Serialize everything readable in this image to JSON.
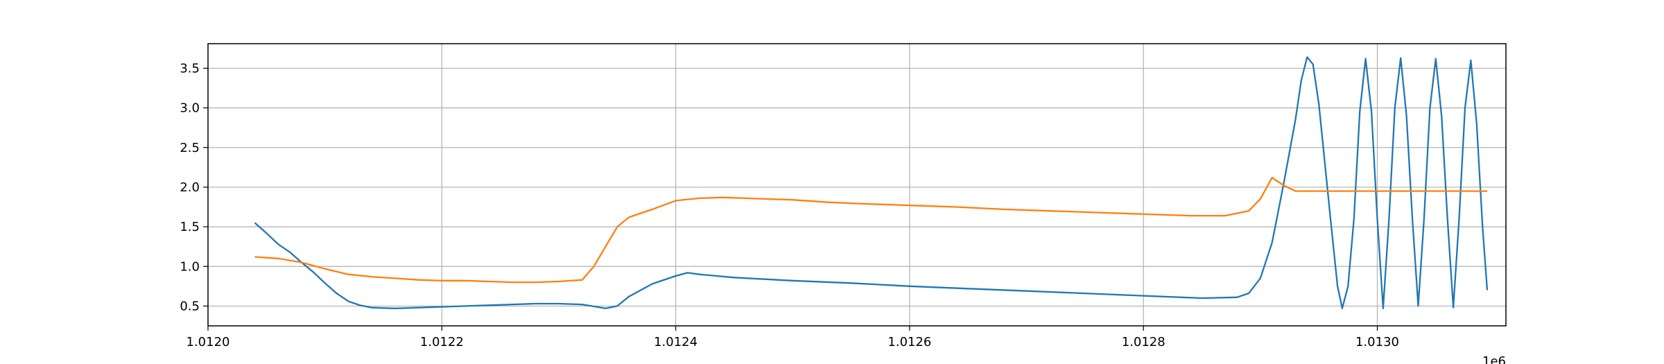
{
  "chart_data": {
    "type": "line",
    "title": "",
    "xlabel": "",
    "ylabel": "",
    "x_offset_label": "1e6",
    "xlim": [
      1.012,
      1.01311
    ],
    "ylim": [
      0.25,
      3.81
    ],
    "x_ticks": [
      1.012,
      1.0122,
      1.0124,
      1.0126,
      1.0128,
      1.013
    ],
    "x_tick_labels": [
      "1.0120",
      "1.0122",
      "1.0124",
      "1.0126",
      "1.0128",
      "1.0130"
    ],
    "y_ticks": [
      0.5,
      1.0,
      1.5,
      2.0,
      2.5,
      3.0,
      3.5
    ],
    "y_tick_labels": [
      "0.5",
      "1.0",
      "1.5",
      "2.0",
      "2.5",
      "3.0",
      "3.5"
    ],
    "grid": true,
    "legend": "none",
    "series": [
      {
        "color": "#1f77b4",
        "points": [
          [
            1.01204,
            1.55
          ],
          [
            1.01205,
            1.42
          ],
          [
            1.01206,
            1.28
          ],
          [
            1.01207,
            1.18
          ],
          [
            1.01208,
            1.05
          ],
          [
            1.01209,
            0.93
          ],
          [
            1.0121,
            0.79
          ],
          [
            1.01211,
            0.66
          ],
          [
            1.01212,
            0.56
          ],
          [
            1.01213,
            0.51
          ],
          [
            1.01214,
            0.48
          ],
          [
            1.01216,
            0.47
          ],
          [
            1.01218,
            0.48
          ],
          [
            1.0122,
            0.49
          ],
          [
            1.01222,
            0.5
          ],
          [
            1.01224,
            0.51
          ],
          [
            1.01226,
            0.52
          ],
          [
            1.01228,
            0.53
          ],
          [
            1.0123,
            0.53
          ],
          [
            1.01232,
            0.52
          ],
          [
            1.01234,
            0.47
          ],
          [
            1.01235,
            0.5
          ],
          [
            1.01236,
            0.62
          ],
          [
            1.01238,
            0.78
          ],
          [
            1.0124,
            0.88
          ],
          [
            1.01241,
            0.92
          ],
          [
            1.01242,
            0.9
          ],
          [
            1.01245,
            0.86
          ],
          [
            1.0125,
            0.82
          ],
          [
            1.01255,
            0.79
          ],
          [
            1.0126,
            0.75
          ],
          [
            1.01265,
            0.72
          ],
          [
            1.0127,
            0.69
          ],
          [
            1.01275,
            0.66
          ],
          [
            1.0128,
            0.63
          ],
          [
            1.01285,
            0.6
          ],
          [
            1.01288,
            0.61
          ],
          [
            1.01289,
            0.66
          ],
          [
            1.0129,
            0.85
          ],
          [
            1.01291,
            1.3
          ],
          [
            1.01292,
            2.05
          ],
          [
            1.01293,
            2.85
          ],
          [
            1.012935,
            3.35
          ],
          [
            1.01294,
            3.64
          ],
          [
            1.012945,
            3.55
          ],
          [
            1.01295,
            3.05
          ],
          [
            1.01296,
            1.6
          ],
          [
            1.012966,
            0.75
          ],
          [
            1.01297,
            0.47
          ],
          [
            1.012975,
            0.75
          ],
          [
            1.01298,
            1.6
          ],
          [
            1.012985,
            2.95
          ],
          [
            1.01299,
            3.62
          ],
          [
            1.012995,
            2.95
          ],
          [
            1.013,
            1.6
          ],
          [
            1.013005,
            0.47
          ],
          [
            1.01301,
            1.6
          ],
          [
            1.013015,
            3.0
          ],
          [
            1.01302,
            3.63
          ],
          [
            1.013025,
            2.9
          ],
          [
            1.01303,
            1.6
          ],
          [
            1.013035,
            0.5
          ],
          [
            1.01304,
            1.6
          ],
          [
            1.013045,
            3.0
          ],
          [
            1.01305,
            3.62
          ],
          [
            1.013055,
            2.9
          ],
          [
            1.01306,
            1.6
          ],
          [
            1.013065,
            0.48
          ],
          [
            1.01307,
            1.6
          ],
          [
            1.013075,
            3.0
          ],
          [
            1.01308,
            3.6
          ],
          [
            1.013085,
            2.8
          ],
          [
            1.01309,
            1.5
          ],
          [
            1.013094,
            0.7
          ]
        ]
      },
      {
        "color": "#ff7f0e",
        "points": [
          [
            1.01204,
            1.12
          ],
          [
            1.01206,
            1.1
          ],
          [
            1.01208,
            1.05
          ],
          [
            1.0121,
            0.97
          ],
          [
            1.01212,
            0.9
          ],
          [
            1.01214,
            0.87
          ],
          [
            1.01216,
            0.85
          ],
          [
            1.01218,
            0.83
          ],
          [
            1.0122,
            0.82
          ],
          [
            1.01222,
            0.82
          ],
          [
            1.01224,
            0.81
          ],
          [
            1.01226,
            0.8
          ],
          [
            1.01228,
            0.8
          ],
          [
            1.0123,
            0.81
          ],
          [
            1.01232,
            0.83
          ],
          [
            1.01233,
            1.0
          ],
          [
            1.01234,
            1.25
          ],
          [
            1.01235,
            1.5
          ],
          [
            1.01236,
            1.62
          ],
          [
            1.01238,
            1.72
          ],
          [
            1.0124,
            1.83
          ],
          [
            1.01242,
            1.86
          ],
          [
            1.01244,
            1.87
          ],
          [
            1.01246,
            1.86
          ],
          [
            1.01248,
            1.85
          ],
          [
            1.0125,
            1.84
          ],
          [
            1.01253,
            1.81
          ],
          [
            1.01256,
            1.79
          ],
          [
            1.0126,
            1.77
          ],
          [
            1.01264,
            1.75
          ],
          [
            1.01268,
            1.72
          ],
          [
            1.01272,
            1.7
          ],
          [
            1.01276,
            1.68
          ],
          [
            1.0128,
            1.66
          ],
          [
            1.01284,
            1.64
          ],
          [
            1.01287,
            1.64
          ],
          [
            1.01289,
            1.7
          ],
          [
            1.0129,
            1.85
          ],
          [
            1.01291,
            2.12
          ],
          [
            1.01292,
            2.02
          ],
          [
            1.01293,
            1.95
          ],
          [
            1.01295,
            1.95
          ],
          [
            1.013,
            1.95
          ],
          [
            1.01305,
            1.95
          ],
          [
            1.013094,
            1.95
          ]
        ]
      }
    ]
  }
}
